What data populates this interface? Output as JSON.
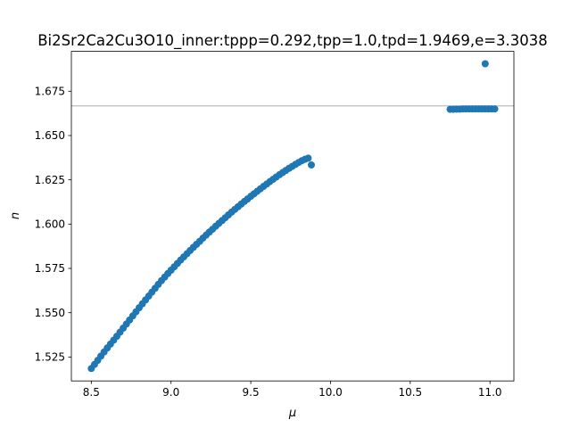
{
  "chart_data": {
    "type": "scatter",
    "title": "Bi2Sr2Ca2Cu3O10_inner:tppp=0.292,tpp=1.0,tpd=1.9469,e=3.3038",
    "xlabel": "μ",
    "ylabel": "n",
    "xlim": [
      8.375,
      11.15
    ],
    "ylim": [
      1.5115,
      1.6975
    ],
    "x_ticks": [
      8.5,
      9.0,
      9.5,
      10.0,
      10.5,
      11.0
    ],
    "x_tick_labels": [
      "8.5",
      "9.0",
      "9.5",
      "10.0",
      "10.5",
      "11.0"
    ],
    "y_ticks": [
      1.525,
      1.55,
      1.575,
      1.6,
      1.625,
      1.65,
      1.675
    ],
    "y_tick_labels": [
      "1.525",
      "1.550",
      "1.575",
      "1.600",
      "1.625",
      "1.650",
      "1.675"
    ],
    "grid": false,
    "reference_line": {
      "orientation": "horizontal",
      "y": 1.6667,
      "color": "#a0a0a0"
    },
    "marker_color": "#1f77b4",
    "series": [
      {
        "x": [
          8.5,
          8.52,
          8.54,
          8.56,
          8.58,
          8.6,
          8.62,
          8.64,
          8.66,
          8.68,
          8.7,
          8.72,
          8.74,
          8.76,
          8.78,
          8.8,
          8.82,
          8.84,
          8.86,
          8.88,
          8.9,
          8.92,
          8.94,
          8.96,
          8.98,
          9.0,
          9.02,
          9.04,
          9.06,
          9.08,
          9.1,
          9.12,
          9.14,
          9.16,
          9.18,
          9.2,
          9.22,
          9.24,
          9.26,
          9.28,
          9.3,
          9.32,
          9.34,
          9.36,
          9.38,
          9.4,
          9.42,
          9.44,
          9.46,
          9.48,
          9.5,
          9.52,
          9.54,
          9.56,
          9.58,
          9.6,
          9.62,
          9.64,
          9.66,
          9.68,
          9.7,
          9.72,
          9.74,
          9.76,
          9.78,
          9.8,
          9.82,
          9.84,
          9.86,
          9.88,
          10.75,
          10.77,
          10.79,
          10.81,
          10.83,
          10.85,
          10.87,
          10.89,
          10.91,
          10.93,
          10.95,
          10.97,
          10.99,
          11.01,
          11.03,
          10.97
        ],
        "y": [
          1.5185,
          1.5208,
          1.5231,
          1.5255,
          1.5278,
          1.5301,
          1.5323,
          1.5345,
          1.5367,
          1.539,
          1.5413,
          1.5436,
          1.5459,
          1.5482,
          1.5505,
          1.5528,
          1.555,
          1.5572,
          1.5594,
          1.5616,
          1.5638,
          1.566,
          1.5681,
          1.5701,
          1.5721,
          1.574,
          1.5759,
          1.5778,
          1.5797,
          1.5815,
          1.5833,
          1.5851,
          1.5869,
          1.5886,
          1.5903,
          1.5921,
          1.5938,
          1.5955,
          1.5971,
          1.5988,
          1.6004,
          1.602,
          1.6036,
          1.6052,
          1.6068,
          1.6083,
          1.6098,
          1.6113,
          1.6128,
          1.6142,
          1.6157,
          1.6171,
          1.6185,
          1.6199,
          1.6213,
          1.6226,
          1.624,
          1.6253,
          1.6266,
          1.6279,
          1.6291,
          1.6303,
          1.6315,
          1.6326,
          1.6337,
          1.6348,
          1.6358,
          1.6366,
          1.6372,
          1.6334,
          1.6648,
          1.6648,
          1.6649,
          1.6649,
          1.665,
          1.665,
          1.665,
          1.665,
          1.665,
          1.665,
          1.665,
          1.665,
          1.665,
          1.665,
          1.665,
          1.6905
        ]
      }
    ]
  }
}
